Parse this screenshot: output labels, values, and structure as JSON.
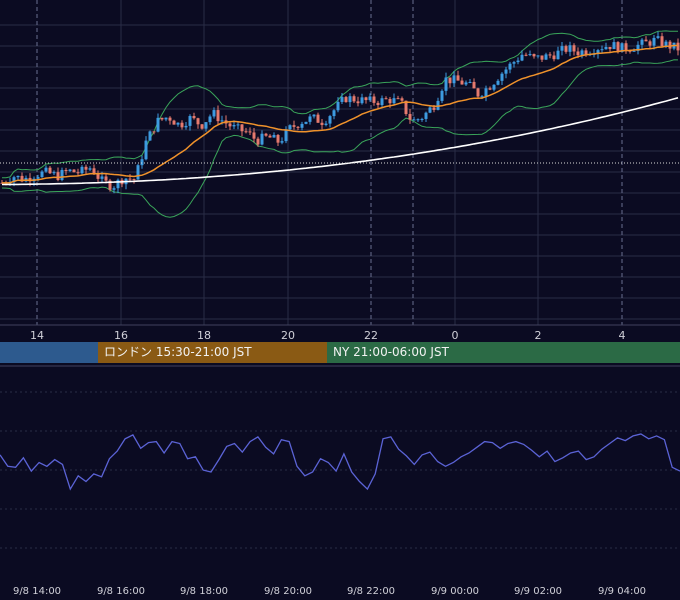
{
  "chart_data": [
    {
      "type": "candlestick",
      "title": "",
      "xlabel": "",
      "ylabel": "",
      "x_ticks": [
        "14",
        "16",
        "18",
        "20",
        "22",
        "0",
        "2",
        "4"
      ],
      "x_range_hours": [
        13.0,
        5.45
      ],
      "grid": true,
      "overlays": [
        {
          "name": "",
          "color": "#f0922b",
          "kind": "moving-average"
        },
        {
          "name": "",
          "color": "#ffffff",
          "kind": "moving-average"
        },
        {
          "name": "",
          "color": "#3aa55a",
          "kind": "bollinger-bands"
        }
      ],
      "colors": {
        "up": "#3d9be0",
        "down": "#e57a6d"
      },
      "price_path_relative": [
        0.16,
        0.2,
        0.18,
        0.21,
        0.22,
        0.2,
        0.23,
        0.22,
        0.25,
        0.17,
        0.14,
        0.19,
        0.18,
        0.4,
        0.52,
        0.55,
        0.5,
        0.54,
        0.5,
        0.57,
        0.52,
        0.48,
        0.46,
        0.41,
        0.43,
        0.4,
        0.48,
        0.52,
        0.54,
        0.52,
        0.59,
        0.66,
        0.65,
        0.64,
        0.64,
        0.65,
        0.63,
        0.52,
        0.55,
        0.62,
        0.77,
        0.76,
        0.74,
        0.68,
        0.73,
        0.8,
        0.86,
        0.92,
        0.89,
        0.9,
        0.92,
        0.95,
        0.93,
        0.94,
        0.96,
        0.97,
        0.95,
        0.96,
        0.98,
        1.0,
        0.97,
        0.95
      ],
      "horizontal_reference": "dotted"
    },
    {
      "type": "line",
      "title": "",
      "x_ticks": [
        "9/8 14:00",
        "9/8 16:00",
        "9/8 18:00",
        "9/8 20:00",
        "9/8 22:00",
        "9/9 00:00",
        "9/9 02:00",
        "9/9 04:00"
      ],
      "series": [
        {
          "name": "",
          "color": "#5b63d6",
          "values_relative": [
            0.58,
            0.46,
            0.45,
            0.55,
            0.41,
            0.5,
            0.46,
            0.53,
            0.48,
            0.22,
            0.36,
            0.3,
            0.38,
            0.35,
            0.54,
            0.62,
            0.75,
            0.79,
            0.65,
            0.71,
            0.72,
            0.6,
            0.72,
            0.7,
            0.54,
            0.56,
            0.42,
            0.4,
            0.53,
            0.67,
            0.7,
            0.61,
            0.72,
            0.77,
            0.66,
            0.59,
            0.74,
            0.72,
            0.46,
            0.36,
            0.4,
            0.54,
            0.5,
            0.41,
            0.59,
            0.4,
            0.3,
            0.22,
            0.38,
            0.75,
            0.77,
            0.64,
            0.57,
            0.48,
            0.58,
            0.61,
            0.51,
            0.46,
            0.5,
            0.56,
            0.6,
            0.66,
            0.72,
            0.71,
            0.65,
            0.7,
            0.72,
            0.69,
            0.63,
            0.56,
            0.62,
            0.51,
            0.55,
            0.6,
            0.62,
            0.53,
            0.56,
            0.64,
            0.7,
            0.76,
            0.73,
            0.78,
            0.8,
            0.75,
            0.78,
            0.74,
            0.45,
            0.41
          ]
        }
      ]
    }
  ],
  "sessions": [
    {
      "label": "",
      "color": "#2d5a8e"
    },
    {
      "label": "ロンドン 15:30-21:00 JST",
      "color": "#8a5a14"
    },
    {
      "label": "NY 21:00-06:00 JST",
      "color": "#2b6a45"
    }
  ],
  "colors": {
    "background": "#0b0b22",
    "grid": "#2a2c46",
    "axis_text": "#d0d0d8"
  }
}
